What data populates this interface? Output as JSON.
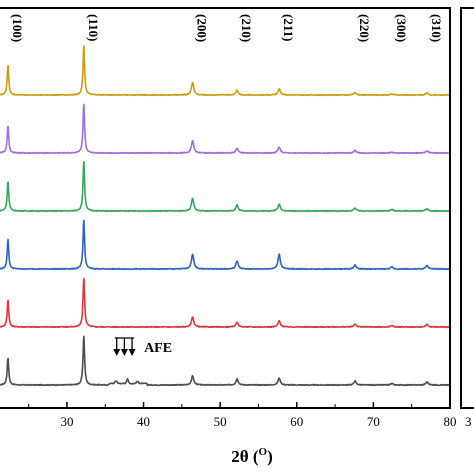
{
  "chart_data": {
    "type": "line",
    "title": "",
    "xlabel": "2θ (",
    "xlabel_superscript": "O",
    "xlabel_close": ")",
    "ylabel": "",
    "xlim": [
      21,
      80
    ],
    "x_ticks": [
      30,
      40,
      50,
      60,
      70,
      80
    ],
    "x_tick_labels": [
      "30",
      "40",
      "50",
      "60",
      "70",
      "80"
    ],
    "right_panel_tick_label": "3",
    "peaks": [
      {
        "label": "(100)",
        "x": 22.3
      },
      {
        "label": "(110)",
        "x": 32.2
      },
      {
        "label": "(200)",
        "x": 46.4
      },
      {
        "label": "(210)",
        "x": 52.2
      },
      {
        "label": "(211)",
        "x": 57.7
      },
      {
        "label": "(220)",
        "x": 67.6
      },
      {
        "label": "(300)",
        "x": 72.4
      },
      {
        "label": "(310)",
        "x": 77.0
      }
    ],
    "annotation": {
      "text": "AFE",
      "arrow_x": [
        36.5,
        37.5,
        38.5
      ]
    },
    "series": [
      {
        "color": "#4d4d4d",
        "intensities": [
          0.55,
          1.0,
          0.18,
          0.12,
          0.14,
          0.08,
          0.03,
          0.06
        ],
        "afe_bump": true
      },
      {
        "color": "#d9383a",
        "intensities": [
          0.55,
          1.0,
          0.2,
          0.1,
          0.12,
          0.06,
          0.03,
          0.05
        ]
      },
      {
        "color": "#2e63c0",
        "intensities": [
          0.6,
          1.0,
          0.3,
          0.16,
          0.3,
          0.08,
          0.04,
          0.07
        ]
      },
      {
        "color": "#3ca45a",
        "intensities": [
          0.6,
          1.0,
          0.25,
          0.12,
          0.14,
          0.06,
          0.03,
          0.05
        ]
      },
      {
        "color": "#9f6fd6",
        "intensities": [
          0.55,
          1.0,
          0.25,
          0.1,
          0.12,
          0.05,
          0.02,
          0.04
        ]
      },
      {
        "color": "#cc9d14",
        "intensities": [
          0.6,
          1.0,
          0.25,
          0.1,
          0.12,
          0.05,
          0.02,
          0.04
        ]
      }
    ]
  }
}
